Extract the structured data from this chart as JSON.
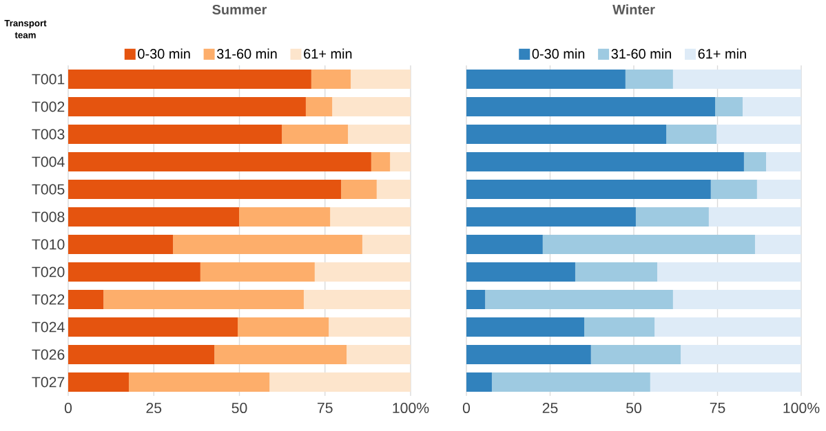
{
  "chart_data": [
    {
      "type": "bar",
      "title": "Summer",
      "ylabel": "Transport team",
      "stacked": true,
      "orientation": "horizontal",
      "grid": "x",
      "legend": "top",
      "categories": [
        "T001",
        "T002",
        "T003",
        "T004",
        "T005",
        "T008",
        "T010",
        "T020",
        "T022",
        "T024",
        "T026",
        "T027"
      ],
      "xlim": [
        0,
        100
      ],
      "xticks": [
        0,
        25,
        50,
        75,
        {
          "value": 100,
          "label": "100%"
        }
      ],
      "series": [
        {
          "name": "0-30 min",
          "color": "#e5540f",
          "values": [
            71,
            69.4,
            62.4,
            88.5,
            79.7,
            49.9,
            30.6,
            38.6,
            10.3,
            49.5,
            42.7,
            17.7
          ]
        },
        {
          "name": "31-60 min",
          "color": "#fdae6b",
          "values": [
            11.5,
            7.7,
            19.3,
            5.5,
            10.4,
            26.6,
            55.3,
            33.4,
            58.5,
            26.6,
            38.6,
            41.1
          ]
        },
        {
          "name": "61+ min",
          "color": "#fde5cc",
          "values": [
            17.5,
            22.9,
            18.3,
            6,
            9.9,
            23.5,
            14.1,
            28,
            31.2,
            23.9,
            18.7,
            41.2
          ]
        }
      ]
    },
    {
      "type": "bar",
      "title": "Winter",
      "stacked": true,
      "orientation": "horizontal",
      "grid": "x",
      "legend": "top",
      "tick_labels": "x",
      "categories": [
        null,
        null,
        null,
        null,
        null,
        null,
        null,
        null,
        null,
        null,
        null,
        null
      ],
      "xlim": [
        0,
        100
      ],
      "xticks": [
        0,
        25,
        50,
        75,
        {
          "value": 100,
          "label": "100%"
        }
      ],
      "series": [
        {
          "name": "0-30 min",
          "color": "#3182bd",
          "values": [
            47.5,
            74.3,
            59.7,
            82.9,
            73,
            50.6,
            22.8,
            32.5,
            5.6,
            35.2,
            37.2,
            7.6
          ]
        },
        {
          "name": "31-60 min",
          "color": "#9ecae1",
          "values": [
            14.2,
            8.2,
            15,
            6.6,
            13.8,
            21.8,
            63.4,
            24.5,
            56.1,
            21,
            26.8,
            47.3
          ]
        },
        {
          "name": "61+ min",
          "color": "#deebf7",
          "values": [
            38.3,
            17.5,
            25.3,
            10.5,
            13.2,
            27.6,
            13.8,
            43,
            38.3,
            43.8,
            36,
            45.1
          ]
        }
      ]
    }
  ]
}
